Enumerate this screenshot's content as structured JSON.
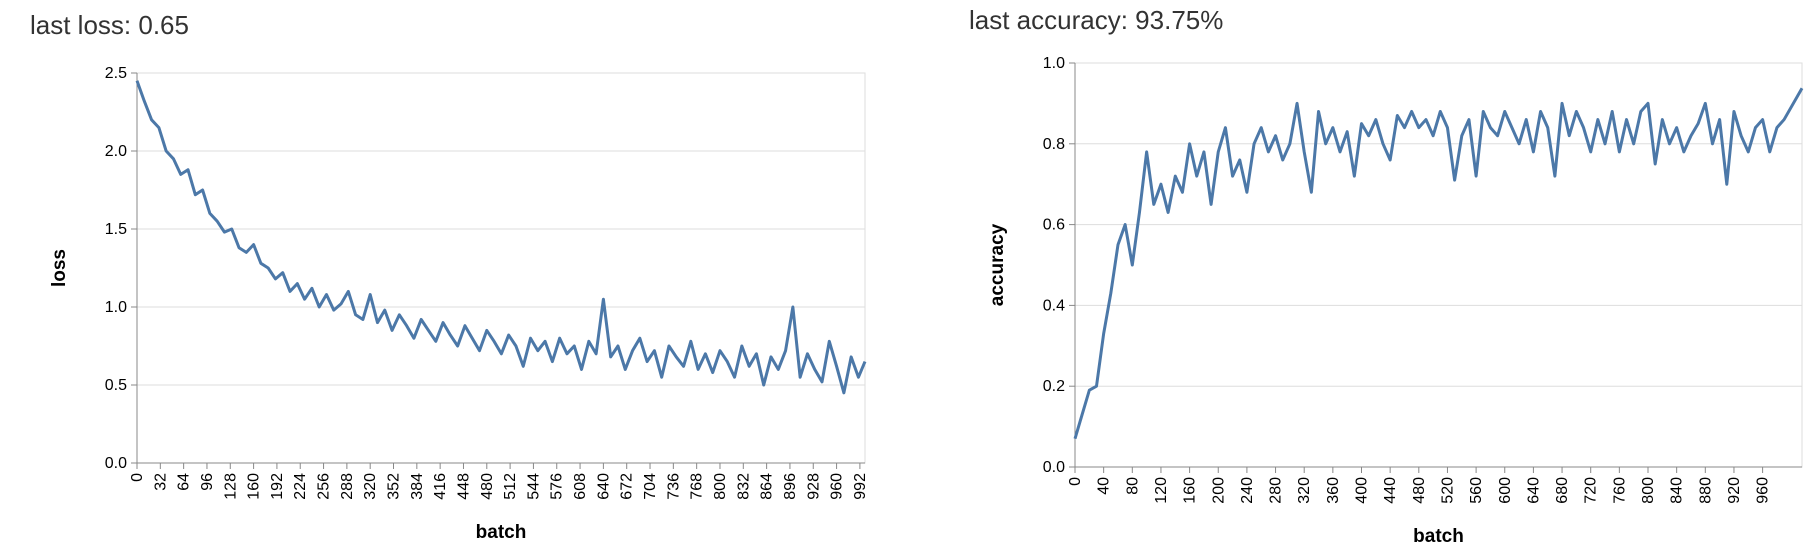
{
  "chart_data": [
    {
      "type": "line",
      "title": "last loss: 0.65",
      "x_label": "batch",
      "y_label": "loss",
      "color": "#4c78a8",
      "grid": true,
      "x": [
        0,
        10,
        20,
        30,
        40,
        50,
        60,
        70,
        80,
        90,
        100,
        110,
        120,
        130,
        140,
        150,
        160,
        170,
        180,
        190,
        200,
        210,
        220,
        230,
        240,
        250,
        260,
        270,
        280,
        290,
        300,
        310,
        320,
        330,
        340,
        350,
        360,
        370,
        380,
        390,
        400,
        410,
        420,
        430,
        440,
        450,
        460,
        470,
        480,
        490,
        500,
        510,
        520,
        530,
        540,
        550,
        560,
        570,
        580,
        590,
        600,
        610,
        620,
        630,
        640,
        650,
        660,
        670,
        680,
        690,
        700,
        710,
        720,
        730,
        740,
        750,
        760,
        770,
        780,
        790,
        800,
        810,
        820,
        830,
        840,
        850,
        860,
        870,
        880,
        890,
        900,
        910,
        920,
        930,
        940,
        950,
        960,
        970,
        980,
        990,
        999
      ],
      "values": [
        2.45,
        2.32,
        2.2,
        2.15,
        2.0,
        1.95,
        1.85,
        1.88,
        1.72,
        1.75,
        1.6,
        1.55,
        1.48,
        1.5,
        1.38,
        1.35,
        1.4,
        1.28,
        1.25,
        1.18,
        1.22,
        1.1,
        1.15,
        1.05,
        1.12,
        1.0,
        1.08,
        0.98,
        1.02,
        1.1,
        0.95,
        0.92,
        1.08,
        0.9,
        0.98,
        0.85,
        0.95,
        0.88,
        0.8,
        0.92,
        0.85,
        0.78,
        0.9,
        0.82,
        0.75,
        0.88,
        0.8,
        0.72,
        0.85,
        0.78,
        0.7,
        0.82,
        0.75,
        0.62,
        0.8,
        0.72,
        0.78,
        0.65,
        0.8,
        0.7,
        0.75,
        0.6,
        0.78,
        0.7,
        1.05,
        0.68,
        0.75,
        0.6,
        0.72,
        0.8,
        0.65,
        0.72,
        0.55,
        0.75,
        0.68,
        0.62,
        0.78,
        0.6,
        0.7,
        0.58,
        0.72,
        0.65,
        0.55,
        0.75,
        0.62,
        0.7,
        0.5,
        0.68,
        0.6,
        0.72,
        1.0,
        0.55,
        0.7,
        0.6,
        0.52,
        0.78,
        0.62,
        0.45,
        0.68,
        0.55,
        0.65
      ],
      "xlim": [
        0,
        999
      ],
      "xticks": [
        0,
        32,
        64,
        96,
        128,
        160,
        192,
        224,
        256,
        288,
        320,
        352,
        384,
        416,
        448,
        480,
        512,
        544,
        576,
        608,
        640,
        672,
        704,
        736,
        768,
        800,
        832,
        864,
        896,
        928,
        960,
        992
      ],
      "ylim": [
        0,
        2.5
      ],
      "yticks": [
        {
          "value": 0,
          "label": "0.0"
        },
        {
          "value": 0.5,
          "label": "0.5"
        },
        {
          "value": 1,
          "label": "1.0"
        },
        {
          "value": 1.5,
          "label": "1.5"
        },
        {
          "value": 2,
          "label": "2.0"
        },
        {
          "value": 2.5,
          "label": "2.5"
        }
      ]
    },
    {
      "type": "line",
      "title": "last accuracy: 93.75%",
      "x_label": "batch",
      "y_label": "accuracy",
      "color": "#4c78a8",
      "grid": true,
      "x": [
        0,
        10,
        20,
        30,
        40,
        50,
        60,
        70,
        80,
        90,
        100,
        110,
        120,
        130,
        140,
        150,
        160,
        170,
        180,
        190,
        200,
        210,
        220,
        230,
        240,
        250,
        260,
        270,
        280,
        290,
        300,
        310,
        320,
        330,
        340,
        350,
        360,
        370,
        380,
        390,
        400,
        410,
        420,
        430,
        440,
        450,
        460,
        470,
        480,
        490,
        500,
        510,
        520,
        530,
        540,
        550,
        560,
        570,
        580,
        590,
        600,
        610,
        620,
        630,
        640,
        650,
        660,
        670,
        680,
        690,
        700,
        710,
        720,
        730,
        740,
        750,
        760,
        770,
        780,
        790,
        800,
        810,
        820,
        830,
        840,
        850,
        860,
        870,
        880,
        890,
        900,
        910,
        920,
        930,
        940,
        950,
        960,
        970,
        980,
        990,
        1015
      ],
      "values": [
        0.07,
        0.13,
        0.19,
        0.2,
        0.33,
        0.43,
        0.55,
        0.6,
        0.5,
        0.63,
        0.78,
        0.65,
        0.7,
        0.63,
        0.72,
        0.68,
        0.8,
        0.72,
        0.78,
        0.65,
        0.78,
        0.84,
        0.72,
        0.76,
        0.68,
        0.8,
        0.84,
        0.78,
        0.82,
        0.76,
        0.8,
        0.9,
        0.78,
        0.68,
        0.88,
        0.8,
        0.84,
        0.78,
        0.83,
        0.72,
        0.85,
        0.82,
        0.86,
        0.8,
        0.76,
        0.87,
        0.84,
        0.88,
        0.84,
        0.86,
        0.82,
        0.88,
        0.84,
        0.71,
        0.82,
        0.86,
        0.72,
        0.88,
        0.84,
        0.82,
        0.88,
        0.84,
        0.8,
        0.86,
        0.78,
        0.88,
        0.84,
        0.72,
        0.9,
        0.82,
        0.88,
        0.84,
        0.78,
        0.86,
        0.8,
        0.88,
        0.78,
        0.86,
        0.8,
        0.88,
        0.9,
        0.75,
        0.86,
        0.8,
        0.84,
        0.78,
        0.82,
        0.85,
        0.9,
        0.8,
        0.86,
        0.7,
        0.88,
        0.82,
        0.78,
        0.84,
        0.86,
        0.78,
        0.84,
        0.86,
        0.9375
      ],
      "xlim": [
        0,
        1015
      ],
      "xticks": [
        0,
        40,
        80,
        120,
        160,
        200,
        240,
        280,
        320,
        360,
        400,
        440,
        480,
        520,
        560,
        600,
        640,
        680,
        720,
        760,
        800,
        840,
        880,
        920,
        960
      ],
      "ylim": [
        0,
        1
      ],
      "yticks": [
        {
          "value": 0,
          "label": "0.0"
        },
        {
          "value": 0.2,
          "label": "0.2"
        },
        {
          "value": 0.4,
          "label": "0.4"
        },
        {
          "value": 0.6,
          "label": "0.6"
        },
        {
          "value": 0.8,
          "label": "0.8"
        },
        {
          "value": 1,
          "label": "1.0"
        }
      ]
    }
  ]
}
